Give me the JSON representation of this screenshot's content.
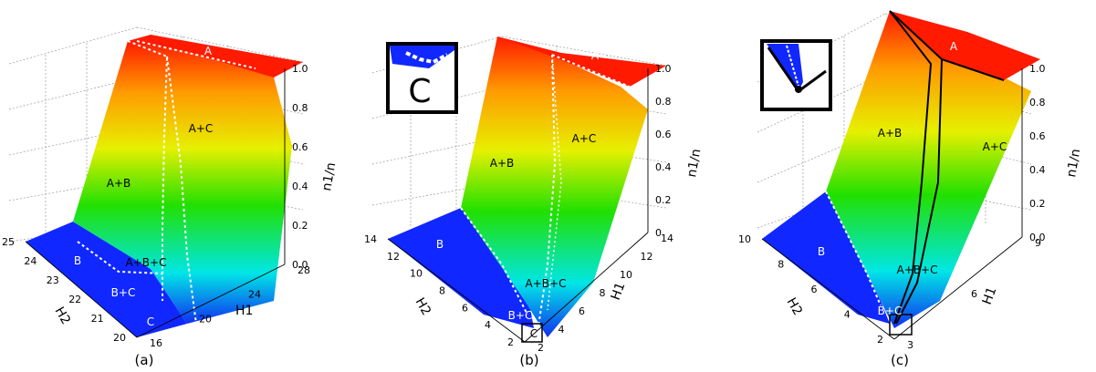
{
  "chart_data": [
    {
      "type": "surface3d",
      "panel_label": "(a)",
      "zlabel": "n1/n",
      "xlabel": "H2",
      "ylabel": "H1",
      "x_ticks": [
        "20",
        "21",
        "22",
        "23",
        "24",
        "25"
      ],
      "y_ticks": [
        "16",
        "20",
        "24",
        "28"
      ],
      "z_ticks": [
        "0.0",
        "0.2",
        "0.4",
        "0.6",
        "0.8",
        "1.0"
      ],
      "xlim": [
        20,
        25
      ],
      "ylim": [
        16,
        28
      ],
      "zlim": [
        0.0,
        1.0
      ],
      "region_labels": [
        "A",
        "A+B",
        "A+C",
        "B",
        "A+B+C",
        "B+C",
        "C"
      ],
      "has_inset": false
    },
    {
      "type": "surface3d",
      "panel_label": "(b)",
      "zlabel": "n1/n",
      "xlabel": "H2",
      "ylabel": "H1",
      "x_ticks": [
        "2",
        "4",
        "6",
        "8",
        "10",
        "12",
        "14"
      ],
      "y_ticks": [
        "2",
        "4",
        "6",
        "8",
        "10",
        "12",
        "14"
      ],
      "z_ticks": [
        "0",
        "0.2",
        "0.4",
        "0.6",
        "0.8",
        "1.0"
      ],
      "xlim": [
        0,
        14
      ],
      "ylim": [
        0,
        14
      ],
      "zlim": [
        0.0,
        1.0
      ],
      "region_labels": [
        "A",
        "A+B",
        "A+C",
        "B",
        "A+B+C",
        "B+C",
        "C"
      ],
      "has_inset": true,
      "inset_label": "C"
    },
    {
      "type": "surface3d",
      "panel_label": "(c)",
      "zlabel": "n1/n",
      "xlabel": "H2",
      "ylabel": "H1",
      "x_ticks": [
        "2",
        "4",
        "6",
        "8",
        "10"
      ],
      "y_ticks": [
        "3",
        "6",
        "9"
      ],
      "z_ticks": [
        "0.0",
        "0.2",
        "0.4",
        "0.6",
        "0.8",
        "1.0"
      ],
      "xlim": [
        0,
        10
      ],
      "ylim": [
        0,
        9
      ],
      "zlim": [
        0.0,
        1.0
      ],
      "region_labels": [
        "A",
        "A+B",
        "A+C",
        "B",
        "A+B+C",
        "B+C"
      ],
      "has_inset": true,
      "inset_label": ""
    }
  ],
  "colors": {
    "red": "#ff1a00",
    "orange": "#ff9a00",
    "yellow": "#e6f000",
    "green": "#22e000",
    "cyan": "#00e6e6",
    "blue": "#1030f0",
    "floor": "#1028ff"
  }
}
